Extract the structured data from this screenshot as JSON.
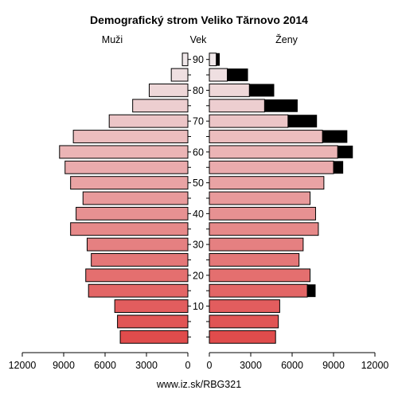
{
  "chart_data": {
    "type": "bar",
    "title": "Demografický strom Veliko Tărnovo 2014",
    "left_label": "Muži",
    "center_label": "Vek",
    "right_label": "Ženy",
    "footer": "www.iz.sk/RBG321",
    "age_ticks": [
      10,
      20,
      30,
      40,
      50,
      60,
      70,
      80,
      90
    ],
    "x_ticks_left": [
      "12000",
      "9000",
      "6000",
      "3000",
      "0"
    ],
    "x_ticks_right": [
      "0",
      "3000",
      "6000",
      "9000",
      "12000"
    ],
    "xlim": [
      0,
      12000
    ],
    "age_groups": [
      "0-4",
      "5-9",
      "10-14",
      "15-19",
      "20-24",
      "25-29",
      "30-34",
      "35-39",
      "40-44",
      "45-49",
      "50-54",
      "55-59",
      "60-64",
      "65-69",
      "70-74",
      "75-79",
      "80-84",
      "85-89",
      "90+"
    ],
    "series": [
      {
        "name": "Muži",
        "values": [
          4900,
          5100,
          5300,
          7200,
          7400,
          7000,
          7300,
          8500,
          8100,
          7600,
          8500,
          8900,
          9300,
          8300,
          5700,
          4000,
          2800,
          1200,
          400
        ],
        "excess": [
          0,
          0,
          0,
          0,
          0,
          0,
          0,
          0,
          0,
          0,
          0,
          0,
          0,
          0,
          0,
          0,
          0,
          0,
          0
        ]
      },
      {
        "name": "Ženy",
        "values": [
          4800,
          5000,
          5100,
          7100,
          7300,
          6500,
          6800,
          7900,
          7700,
          7300,
          8300,
          9000,
          9300,
          8200,
          5700,
          4000,
          2900,
          1300,
          500
        ],
        "excess": [
          0,
          0,
          0,
          600,
          0,
          0,
          0,
          0,
          0,
          0,
          0,
          700,
          1100,
          1800,
          2100,
          2400,
          1800,
          1500,
          250
        ]
      }
    ],
    "grid": false
  }
}
